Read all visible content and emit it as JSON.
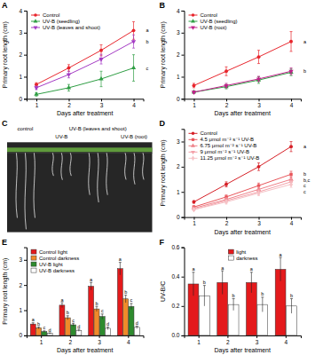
{
  "chart_data": [
    {
      "type": "line",
      "title": "A",
      "x_label": "Days after treatment",
      "y_label": "Primary root length (cm)",
      "categories": [
        "1",
        "2",
        "3",
        "4"
      ],
      "ylim": [
        0,
        4
      ],
      "yticks": [
        0,
        1,
        2,
        3,
        4
      ],
      "legend": "upper left",
      "series": [
        {
          "name": "Control",
          "color": "#e8262d",
          "marker": "circle",
          "values": [
            0.65,
            1.4,
            2.2,
            3.1
          ],
          "errors": [
            0.08,
            0.15,
            0.25,
            0.4
          ],
          "letter": "a"
        },
        {
          "name": "UV-B (seedling)",
          "color": "#2f9e44",
          "marker": "triangle",
          "values": [
            0.2,
            0.5,
            0.9,
            1.4
          ],
          "errors": [
            0.08,
            0.15,
            0.35,
            0.6
          ],
          "letter": "c"
        },
        {
          "name": "UV-B (leaves and shoot)",
          "color": "#a43bc4",
          "marker": "triangle-down",
          "values": [
            0.5,
            1.1,
            1.8,
            2.6
          ],
          "errors": [
            0.08,
            0.15,
            0.22,
            0.3
          ],
          "letter": "b"
        }
      ]
    },
    {
      "type": "line",
      "title": "B",
      "x_label": "Days after treatment",
      "y_label": "Primary root length (cm)",
      "categories": [
        "1",
        "2",
        "3",
        "4"
      ],
      "ylim": [
        0,
        4
      ],
      "yticks": [
        0,
        1,
        2,
        3,
        4
      ],
      "legend": "upper left",
      "series": [
        {
          "name": "Control",
          "color": "#e8262d",
          "marker": "circle",
          "values": [
            0.6,
            1.25,
            1.9,
            2.6
          ],
          "errors": [
            0.1,
            0.2,
            0.3,
            0.45
          ],
          "letter": "a"
        },
        {
          "name": "UV-B (seedling)",
          "color": "#2f9e44",
          "marker": "triangle",
          "values": [
            0.3,
            0.55,
            0.85,
            1.2
          ],
          "errors": [
            0.05,
            0.1,
            0.15,
            0.15
          ]
        },
        {
          "name": "UV-B (root)",
          "color": "#c0208a",
          "marker": "triangle-down",
          "values": [
            0.3,
            0.6,
            0.9,
            1.25
          ],
          "errors": [
            0.05,
            0.1,
            0.12,
            0.15
          ],
          "letter": "b"
        }
      ]
    },
    {
      "type": "image",
      "title": "C",
      "labels": [
        "control",
        "UV-B",
        "UV-B (leaves and shoot)",
        "UV-B (root)"
      ]
    },
    {
      "type": "line",
      "title": "D",
      "x_label": "Days after treatment",
      "y_label": "Primary root length (cm)",
      "categories": [
        "1",
        "2",
        "3",
        "4"
      ],
      "ylim": [
        0,
        3.5
      ],
      "yticks": [
        0,
        1,
        2,
        3
      ],
      "legend": "upper left",
      "series": [
        {
          "name": "Control",
          "color": "#d62027",
          "marker": "circle",
          "values": [
            0.6,
            1.3,
            2.0,
            2.8
          ],
          "errors": [
            0.05,
            0.1,
            0.15,
            0.2
          ],
          "letter": "a"
        },
        {
          "name": "4.5 μmol m⁻² s⁻¹ UV-B",
          "color": "#e8555a",
          "marker": "square",
          "values": [
            0.4,
            0.8,
            1.25,
            1.7
          ],
          "errors": [
            0.05,
            0.08,
            0.1,
            0.12
          ],
          "letter": "b"
        },
        {
          "name": "6.75 μmol m⁻² s⁻¹ UV-B",
          "color": "#ee8088",
          "marker": "triangle",
          "values": [
            0.35,
            0.7,
            1.1,
            1.5
          ],
          "errors": [
            0.05,
            0.08,
            0.1,
            0.12
          ],
          "letter": "b,c"
        },
        {
          "name": "9 μmol m⁻² s⁻¹ UV-B",
          "color": "#f3a0a8",
          "marker": "triangle-down",
          "values": [
            0.3,
            0.65,
            1.0,
            1.4
          ],
          "errors": [
            0.05,
            0.08,
            0.1,
            0.12
          ],
          "letter": "c"
        },
        {
          "name": "11.25 μmol m⁻² s⁻¹ UV-B",
          "color": "#f6c2c6",
          "marker": "diamond",
          "values": [
            0.3,
            0.6,
            0.95,
            1.3
          ],
          "errors": [
            0.05,
            0.08,
            0.1,
            0.12
          ],
          "letter": "c"
        }
      ]
    },
    {
      "type": "bar",
      "title": "E",
      "x_label": "Days after treatment",
      "y_label": "Primary root length (cm)",
      "categories": [
        "1",
        "2",
        "3",
        "4"
      ],
      "ylim": [
        0,
        3.5
      ],
      "yticks": [
        0,
        1,
        2,
        3
      ],
      "legend": "upper left",
      "series": [
        {
          "name": "Control light",
          "color": "#e41a1c",
          "values": [
            0.45,
            1.2,
            1.95,
            2.65
          ],
          "errors": [
            0.05,
            0.1,
            0.15,
            0.25
          ],
          "letters": [
            "a",
            "a",
            "a",
            "a"
          ]
        },
        {
          "name": "Control darkness",
          "color": "#f08a2a",
          "values": [
            0.3,
            0.7,
            1.05,
            1.45
          ],
          "errors": [
            0.04,
            0.08,
            0.1,
            0.15
          ],
          "letters": [
            "b",
            "b",
            "b",
            "b"
          ]
        },
        {
          "name": "UV-B light",
          "color": "#2e8b2e",
          "values": [
            0.15,
            0.42,
            0.75,
            1.15
          ],
          "errors": [
            0.03,
            0.06,
            0.1,
            0.12
          ],
          "letters": [
            "c",
            "c",
            "c",
            "c"
          ]
        },
        {
          "name": "UV-B darkness",
          "color": "#ffffff",
          "values": [
            0.08,
            0.2,
            0.28,
            0.32
          ],
          "errors": [
            0.02,
            0.04,
            0.05,
            0.05
          ],
          "letters": [
            "d",
            "d",
            "d",
            "d"
          ]
        }
      ]
    },
    {
      "type": "bar",
      "title": "F",
      "x_label": "Days after treatment",
      "y_label": "UV-B/C",
      "categories": [
        "1",
        "2",
        "3",
        "4"
      ],
      "ylim": [
        0,
        0.6
      ],
      "yticks": [
        {
          "value": 0,
          "label": "0.0"
        },
        {
          "value": 0.2,
          "label": "0.2"
        },
        {
          "value": 0.4,
          "label": "0.4"
        },
        {
          "value": 0.6,
          "label": "0.6"
        }
      ],
      "legend": "upper center",
      "series": [
        {
          "name": "light",
          "color": "#e41a1c",
          "values": [
            0.35,
            0.36,
            0.36,
            0.45
          ],
          "errors": [
            0.08,
            0.08,
            0.07,
            0.08
          ],
          "letters": [
            "a",
            "a",
            "a",
            "a"
          ]
        },
        {
          "name": "darkness",
          "color": "#ffffff",
          "values": [
            0.27,
            0.21,
            0.21,
            0.2
          ],
          "errors": [
            0.07,
            0.04,
            0.05,
            0.05
          ],
          "letters": [
            "b",
            "b",
            "b",
            "b"
          ]
        }
      ]
    }
  ]
}
